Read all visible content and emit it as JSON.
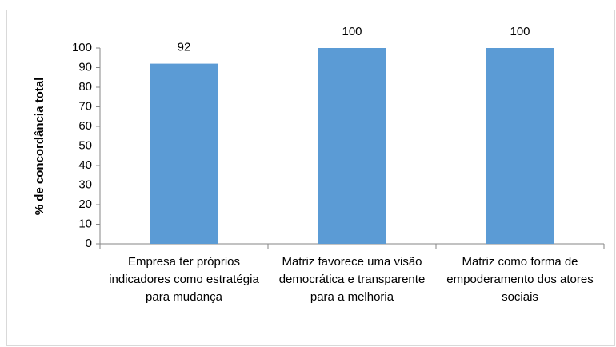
{
  "chart_data": {
    "type": "bar",
    "ylabel": "% de concordância total",
    "categories": [
      "Empresa ter próprios indicadores como estratégia para mudança",
      "Matriz favorece uma visão democrática e transparente para a melhoria",
      "Matriz como forma de empoderamento dos atores sociais"
    ],
    "values": [
      92,
      100,
      100
    ],
    "color": "#5b9bd5",
    "ylim": [
      0,
      100
    ],
    "yticks": [
      0,
      10,
      20,
      30,
      40,
      50,
      60,
      70,
      80,
      90,
      100
    ],
    "grid": false
  }
}
